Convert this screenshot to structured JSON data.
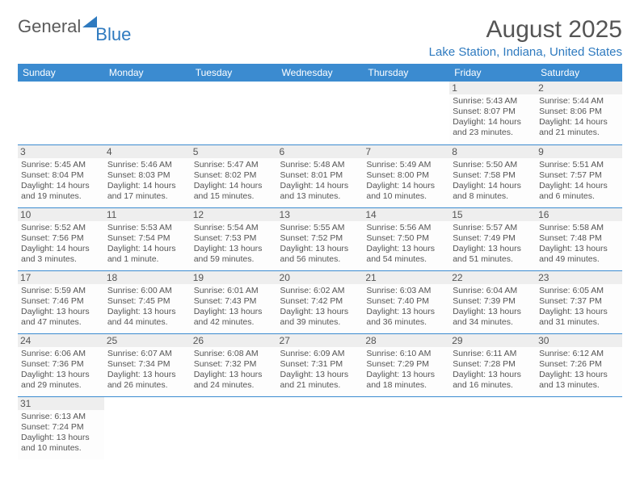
{
  "logo": {
    "text1": "General",
    "text2": "Blue"
  },
  "title": "August 2025",
  "location": "Lake Station, Indiana, United States",
  "colors": {
    "header_bg": "#3b8bd0",
    "header_text": "#ffffff",
    "accent": "#2e7abf",
    "body_text": "#555555",
    "daynum_bg": "#eeeeee",
    "border": "#3b8bd0"
  },
  "weekdays": [
    "Sunday",
    "Monday",
    "Tuesday",
    "Wednesday",
    "Thursday",
    "Friday",
    "Saturday"
  ],
  "weeks": [
    [
      null,
      null,
      null,
      null,
      null,
      {
        "n": "1",
        "sunrise": "5:43 AM",
        "sunset": "8:07 PM",
        "daylight": "14 hours and 23 minutes."
      },
      {
        "n": "2",
        "sunrise": "5:44 AM",
        "sunset": "8:06 PM",
        "daylight": "14 hours and 21 minutes."
      }
    ],
    [
      {
        "n": "3",
        "sunrise": "5:45 AM",
        "sunset": "8:04 PM",
        "daylight": "14 hours and 19 minutes."
      },
      {
        "n": "4",
        "sunrise": "5:46 AM",
        "sunset": "8:03 PM",
        "daylight": "14 hours and 17 minutes."
      },
      {
        "n": "5",
        "sunrise": "5:47 AM",
        "sunset": "8:02 PM",
        "daylight": "14 hours and 15 minutes."
      },
      {
        "n": "6",
        "sunrise": "5:48 AM",
        "sunset": "8:01 PM",
        "daylight": "14 hours and 13 minutes."
      },
      {
        "n": "7",
        "sunrise": "5:49 AM",
        "sunset": "8:00 PM",
        "daylight": "14 hours and 10 minutes."
      },
      {
        "n": "8",
        "sunrise": "5:50 AM",
        "sunset": "7:58 PM",
        "daylight": "14 hours and 8 minutes."
      },
      {
        "n": "9",
        "sunrise": "5:51 AM",
        "sunset": "7:57 PM",
        "daylight": "14 hours and 6 minutes."
      }
    ],
    [
      {
        "n": "10",
        "sunrise": "5:52 AM",
        "sunset": "7:56 PM",
        "daylight": "14 hours and 3 minutes."
      },
      {
        "n": "11",
        "sunrise": "5:53 AM",
        "sunset": "7:54 PM",
        "daylight": "14 hours and 1 minute."
      },
      {
        "n": "12",
        "sunrise": "5:54 AM",
        "sunset": "7:53 PM",
        "daylight": "13 hours and 59 minutes."
      },
      {
        "n": "13",
        "sunrise": "5:55 AM",
        "sunset": "7:52 PM",
        "daylight": "13 hours and 56 minutes."
      },
      {
        "n": "14",
        "sunrise": "5:56 AM",
        "sunset": "7:50 PM",
        "daylight": "13 hours and 54 minutes."
      },
      {
        "n": "15",
        "sunrise": "5:57 AM",
        "sunset": "7:49 PM",
        "daylight": "13 hours and 51 minutes."
      },
      {
        "n": "16",
        "sunrise": "5:58 AM",
        "sunset": "7:48 PM",
        "daylight": "13 hours and 49 minutes."
      }
    ],
    [
      {
        "n": "17",
        "sunrise": "5:59 AM",
        "sunset": "7:46 PM",
        "daylight": "13 hours and 47 minutes."
      },
      {
        "n": "18",
        "sunrise": "6:00 AM",
        "sunset": "7:45 PM",
        "daylight": "13 hours and 44 minutes."
      },
      {
        "n": "19",
        "sunrise": "6:01 AM",
        "sunset": "7:43 PM",
        "daylight": "13 hours and 42 minutes."
      },
      {
        "n": "20",
        "sunrise": "6:02 AM",
        "sunset": "7:42 PM",
        "daylight": "13 hours and 39 minutes."
      },
      {
        "n": "21",
        "sunrise": "6:03 AM",
        "sunset": "7:40 PM",
        "daylight": "13 hours and 36 minutes."
      },
      {
        "n": "22",
        "sunrise": "6:04 AM",
        "sunset": "7:39 PM",
        "daylight": "13 hours and 34 minutes."
      },
      {
        "n": "23",
        "sunrise": "6:05 AM",
        "sunset": "7:37 PM",
        "daylight": "13 hours and 31 minutes."
      }
    ],
    [
      {
        "n": "24",
        "sunrise": "6:06 AM",
        "sunset": "7:36 PM",
        "daylight": "13 hours and 29 minutes."
      },
      {
        "n": "25",
        "sunrise": "6:07 AM",
        "sunset": "7:34 PM",
        "daylight": "13 hours and 26 minutes."
      },
      {
        "n": "26",
        "sunrise": "6:08 AM",
        "sunset": "7:32 PM",
        "daylight": "13 hours and 24 minutes."
      },
      {
        "n": "27",
        "sunrise": "6:09 AM",
        "sunset": "7:31 PM",
        "daylight": "13 hours and 21 minutes."
      },
      {
        "n": "28",
        "sunrise": "6:10 AM",
        "sunset": "7:29 PM",
        "daylight": "13 hours and 18 minutes."
      },
      {
        "n": "29",
        "sunrise": "6:11 AM",
        "sunset": "7:28 PM",
        "daylight": "13 hours and 16 minutes."
      },
      {
        "n": "30",
        "sunrise": "6:12 AM",
        "sunset": "7:26 PM",
        "daylight": "13 hours and 13 minutes."
      }
    ],
    [
      {
        "n": "31",
        "sunrise": "6:13 AM",
        "sunset": "7:24 PM",
        "daylight": "13 hours and 10 minutes."
      },
      null,
      null,
      null,
      null,
      null,
      null
    ]
  ],
  "labels": {
    "sunrise": "Sunrise:",
    "sunset": "Sunset:",
    "daylight": "Daylight:"
  }
}
